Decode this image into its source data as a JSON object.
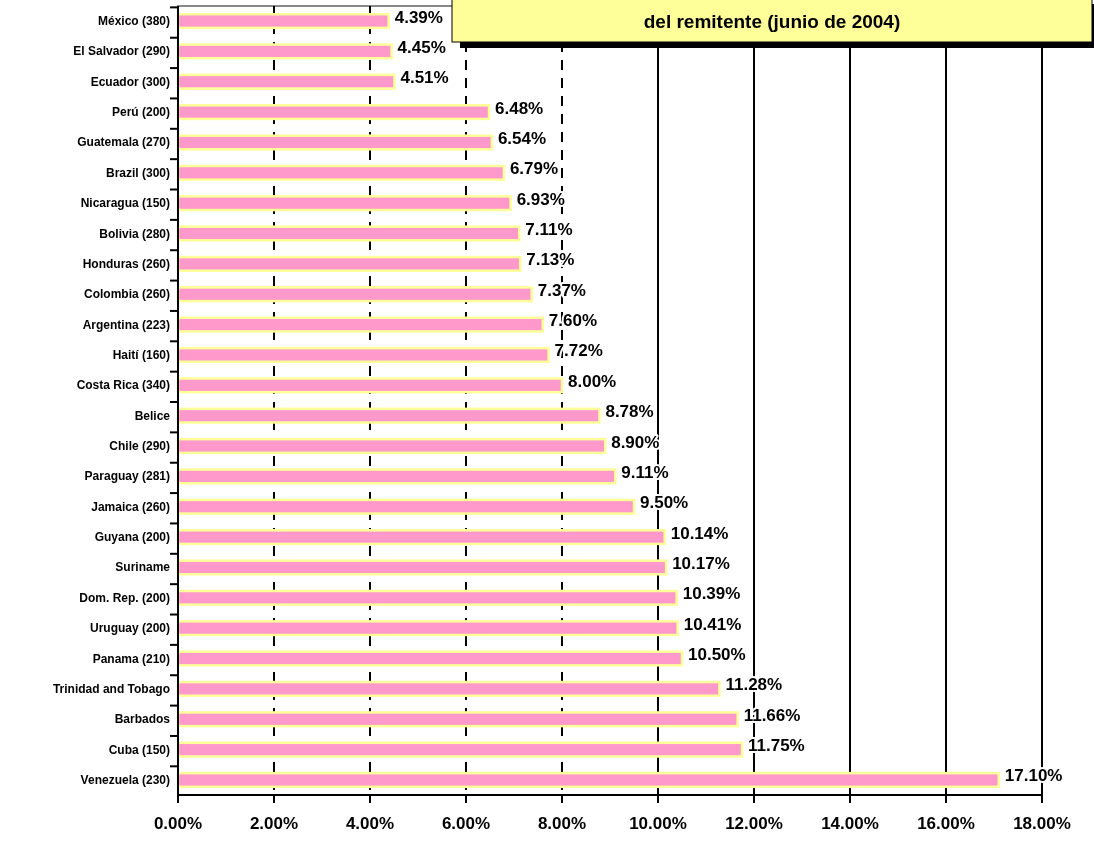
{
  "chart_data": {
    "type": "bar",
    "orientation": "horizontal",
    "title": "del remitente (junio de 2004)",
    "categories": [
      "México (380)",
      "El Salvador (290)",
      "Ecuador (300)",
      "Perú (200)",
      "Guatemala (270)",
      "Brazil (300)",
      "Nicaragua (150)",
      "Bolivia (280)",
      "Honduras (260)",
      "Colombia (260)",
      "Argentina (223)",
      "Haití (160)",
      "Costa Rica (340)",
      "Belice",
      "Chile (290)",
      "Paraguay (281)",
      "Jamaica (260)",
      "Guyana (200)",
      "Suriname",
      "Dom. Rep. (200)",
      "Uruguay (200)",
      "Panama (210)",
      "Trinidad and Tobago",
      "Barbados",
      "Cuba (150)",
      "Venezuela (230)"
    ],
    "values": [
      4.39,
      4.45,
      4.51,
      6.48,
      6.54,
      6.79,
      6.93,
      7.11,
      7.13,
      7.37,
      7.6,
      7.72,
      8.0,
      8.78,
      8.9,
      9.11,
      9.5,
      10.14,
      10.17,
      10.39,
      10.41,
      10.5,
      11.28,
      11.66,
      11.75,
      17.1
    ],
    "value_labels": [
      "4.39%",
      "4.45%",
      "4.51%",
      "6.48%",
      "6.54%",
      "6.79%",
      "6.93%",
      "7.11%",
      "7.13%",
      "7.37%",
      "7.60%",
      "7.72%",
      "8.00%",
      "8.78%",
      "8.90%",
      "9.11%",
      "9.50%",
      "10.14%",
      "10.17%",
      "10.39%",
      "10.41%",
      "10.50%",
      "11.28%",
      "11.66%",
      "11.75%",
      "17.10%"
    ],
    "color": "#ff99cc",
    "xlim": [
      0,
      18
    ],
    "xticks": [
      {
        "value": 0,
        "label": "0.00%"
      },
      {
        "value": 2,
        "label": "2.00%"
      },
      {
        "value": 4,
        "label": "4.00%"
      },
      {
        "value": 6,
        "label": "6.00%"
      },
      {
        "value": 8,
        "label": "8.00%"
      },
      {
        "value": 10,
        "label": "10.00%"
      },
      {
        "value": 12,
        "label": "12.00%"
      },
      {
        "value": 14,
        "label": "14.00%"
      },
      {
        "value": 16,
        "label": "16.00%"
      },
      {
        "value": 18,
        "label": "18.00%"
      }
    ],
    "grid": "x"
  }
}
